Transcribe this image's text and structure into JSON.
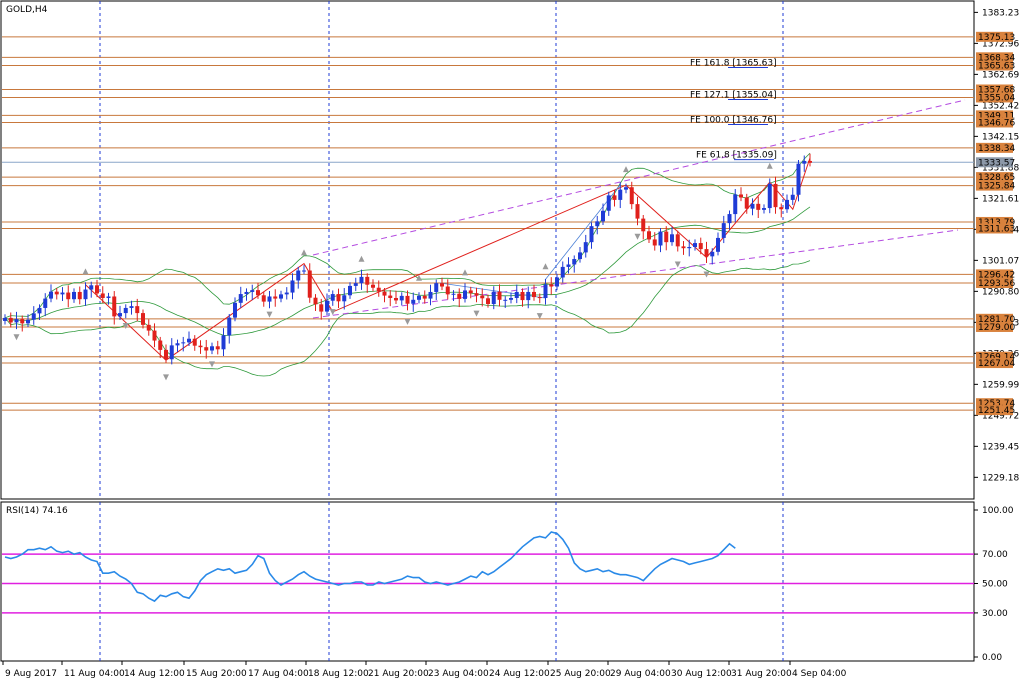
{
  "header": {
    "symbol_label": "GOLD,H4"
  },
  "colors": {
    "background": "#ffffff",
    "bull": "#1f3bd6",
    "bear": "#e0201c",
    "level_line": "#c8783c",
    "level_label_bg": "#d9823d",
    "bollinger": "#2f9a3c",
    "channel": "#b44be0",
    "vline": "#1f3bd6",
    "rsi_line": "#2a8ae8",
    "rsi_level": "#e020e0",
    "zigzag": "#e0201c",
    "fibo": "#1f3bd6"
  },
  "chart_data": [
    {
      "type": "candlestick",
      "title": "GOLD,H4",
      "price_axis_labels": [
        "1383.23",
        "1372.96",
        "1362.69",
        "1352.42",
        "1342.15",
        "1331.88",
        "1321.61",
        "1311.34",
        "1301.07",
        "1290.80",
        "1280.53",
        "1270.26",
        "1259.99",
        "1249.72",
        "1239.45",
        "1229.18"
      ],
      "time_axis_labels": [
        "9 Aug 2017",
        "11 Aug 04:00",
        "14 Aug 12:00",
        "15 Aug 20:00",
        "17 Aug 04:00",
        "18 Aug 12:00",
        "21 Aug 20:00",
        "23 Aug 04:00",
        "24 Aug 12:00",
        "25 Aug 20:00",
        "29 Aug 04:00",
        "30 Aug 12:00",
        "31 Aug 20:00",
        "4 Sep 04:00"
      ],
      "ylim": [
        1222.0,
        1387.0
      ],
      "current_price": "1333.57",
      "horizontal_levels": [
        "1375.13",
        "1368.34",
        "1365.63",
        "1357.68",
        "1355.04",
        "1349.11",
        "1346.76",
        "1338.34",
        "1328.65",
        "1325.84",
        "1313.79",
        "1311.63",
        "1296.42",
        "1293.56",
        "1281.70",
        "1279.00",
        "1269.14",
        "1267.04",
        "1253.74",
        "1251.45"
      ],
      "fibonacci_labels": [
        "FE 161.8 [1365.63]",
        "FE 127.1 [1355.04]",
        "FE 100.0 [1346.76]",
        "FE 61.8 [1335.09]"
      ],
      "close": [
        1282.0,
        1280.5,
        1281.6,
        1280.2,
        1281.4,
        1283.5,
        1285.3,
        1288.4,
        1290.7,
        1289.8,
        1290.4,
        1288.2,
        1290.6,
        1288.2,
        1291.4,
        1292.8,
        1290.1,
        1288.6,
        1289.1,
        1282.5,
        1283.6,
        1285.3,
        1285.9,
        1283.6,
        1279.7,
        1277.8,
        1274.5,
        1271.4,
        1268.3,
        1272.9,
        1273.6,
        1273.9,
        1275.1,
        1272.8,
        1272.3,
        1271.2,
        1272.6,
        1271.6,
        1276.2,
        1282.1,
        1287.0,
        1289.9,
        1290.6,
        1291.2,
        1289.5,
        1287.4,
        1289.1,
        1288.4,
        1289.8,
        1290.4,
        1294.4,
        1297.7,
        1297.7,
        1288.7,
        1286.5,
        1284.1,
        1287.7,
        1289.9,
        1287.5,
        1289.5,
        1292.6,
        1293.5,
        1295.6,
        1293.0,
        1292.0,
        1290.7,
        1289.4,
        1288.6,
        1287.8,
        1289.3,
        1286.7,
        1288.0,
        1289.3,
        1288.4,
        1290.6,
        1293.5,
        1292.4,
        1289.8,
        1290.0,
        1288.3,
        1291.1,
        1290.2,
        1289.4,
        1288.5,
        1286.6,
        1290.7,
        1288.0,
        1288.0,
        1288.6,
        1290.6,
        1287.9,
        1290.6,
        1288.9,
        1288.6,
        1293.1,
        1292.4,
        1295.4,
        1298.9,
        1299.7,
        1301.5,
        1303.7,
        1307.1,
        1312.4,
        1314.0,
        1317.5,
        1322.6,
        1321.1,
        1324.5,
        1325.3,
        1319.7,
        1314.9,
        1310.7,
        1308.0,
        1306.0,
        1310.6,
        1307.1,
        1309.7,
        1305.7,
        1305.1,
        1305.5,
        1306.8,
        1304.8,
        1302.4,
        1303.9,
        1308.5,
        1313.4,
        1316.4,
        1322.9,
        1321.9,
        1318.2,
        1319.8,
        1317.8,
        1318.4,
        1326.4,
        1318.7,
        1318.0,
        1321.1,
        1322.8,
        1333.1,
        1334.0,
        1333.4
      ]
    },
    {
      "type": "line",
      "title": "RSI(14) 74.16",
      "axis_labels": [
        "100.00",
        "70.00",
        "50.00",
        "30.00",
        "0.00"
      ],
      "ylim": [
        0,
        100
      ],
      "levels": [
        70,
        50,
        30
      ],
      "values": [
        68,
        67,
        68,
        70,
        73,
        73,
        74,
        73,
        75,
        72,
        71,
        72,
        70,
        71,
        68,
        66,
        65,
        57,
        57,
        58,
        55,
        53,
        50,
        44,
        43,
        40,
        38,
        42,
        41,
        43,
        44,
        41,
        40,
        45,
        52,
        56,
        58,
        60,
        59,
        60,
        57,
        58,
        59,
        63,
        69,
        67,
        57,
        52,
        49,
        51,
        53,
        56,
        58,
        55,
        53,
        52,
        51,
        50,
        49,
        50,
        50,
        51,
        51,
        49,
        49,
        51,
        50,
        51,
        52,
        53,
        55,
        54,
        54,
        51,
        50,
        51,
        50,
        49,
        50,
        51,
        53,
        55,
        54,
        58,
        56,
        58,
        61,
        64,
        67,
        71,
        75,
        78,
        81,
        82,
        81,
        85,
        84,
        80,
        74,
        64,
        60,
        58,
        59,
        60,
        58,
        59,
        57,
        56,
        56,
        55,
        54,
        52,
        56,
        60,
        63,
        65,
        67,
        66,
        65,
        63,
        64,
        65,
        66,
        67,
        69,
        73,
        77,
        74
      ]
    }
  ]
}
